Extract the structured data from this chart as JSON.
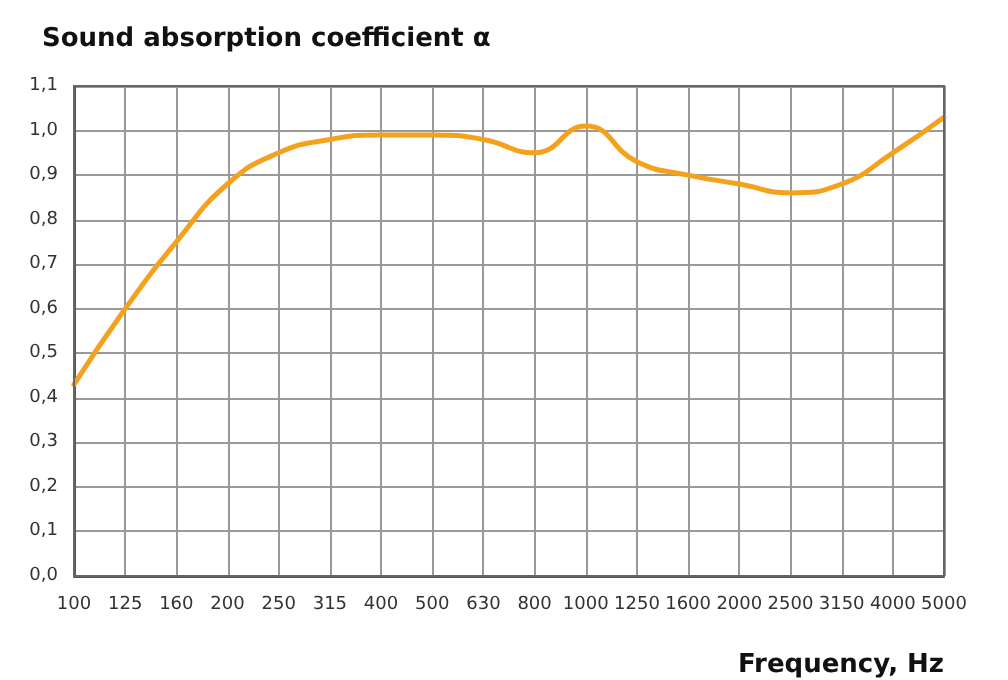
{
  "chart_data": {
    "type": "line",
    "title": "Sound absorption coefficient α",
    "xlabel": "Frequency, Hz",
    "categories": [
      "100",
      "125",
      "160",
      "200",
      "250",
      "315",
      "400",
      "500",
      "630",
      "800",
      "1000",
      "1250",
      "1600",
      "2000",
      "2500",
      "3150",
      "4000",
      "5000"
    ],
    "series": [
      {
        "color": "#f4a21e",
        "values": [
          0.43,
          0.6,
          0.75,
          0.88,
          0.95,
          0.98,
          0.99,
          0.99,
          0.98,
          0.95,
          1.01,
          0.93,
          0.9,
          0.88,
          0.86,
          0.88,
          0.95,
          1.03
        ]
      }
    ],
    "ylim": [
      0,
      1.1
    ],
    "yticks": [
      {
        "value": 0,
        "label": "0,0"
      },
      {
        "value": 0.1,
        "label": "0,1"
      },
      {
        "value": 0.2,
        "label": "0,2"
      },
      {
        "value": 0.3,
        "label": "0,3"
      },
      {
        "value": 0.4,
        "label": "0,4"
      },
      {
        "value": 0.5,
        "label": "0,5"
      },
      {
        "value": 0.6,
        "label": "0,6"
      },
      {
        "value": 0.7,
        "label": "0,7"
      },
      {
        "value": 0.8,
        "label": "0,8"
      },
      {
        "value": 0.9,
        "label": "0,9"
      },
      {
        "value": 1.0,
        "label": "1,0"
      },
      {
        "value": 1.1,
        "label": "1,1"
      }
    ],
    "grid": true,
    "marker": "none",
    "line_style": "solid"
  }
}
